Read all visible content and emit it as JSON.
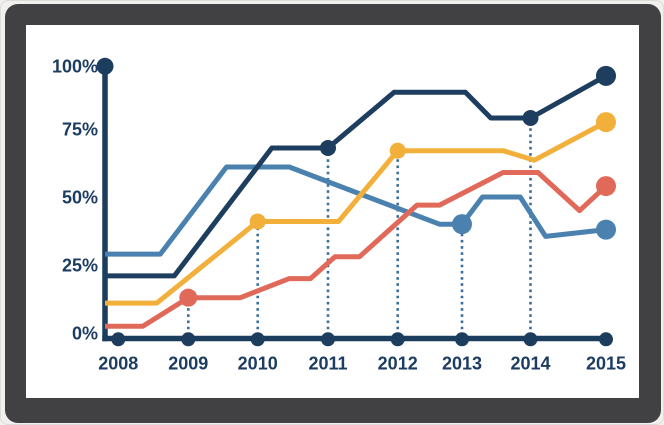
{
  "colors": {
    "bezel": "#414042",
    "screen": "#ffffff",
    "page_background": "#f1f0ee",
    "axis": "#1c3d5e",
    "label_text": "#1c3d61",
    "dotted_guide": "#3b6e9b",
    "series_dark_navy": "#1d3e5f",
    "series_steel_blue": "#4a81ae",
    "series_amber": "#f2b03b",
    "series_coral_red": "#e0695a"
  },
  "chart_data": {
    "type": "line",
    "title": "",
    "xlabel": "",
    "ylabel": "",
    "x_ticks": [
      "2008",
      "2009",
      "2010",
      "2011",
      "2012",
      "2013",
      "2014",
      "2015"
    ],
    "y_ticks": [
      {
        "label": "100%",
        "value": 100
      },
      {
        "label": "75%",
        "value": 75
      },
      {
        "label": "50%",
        "value": 50
      },
      {
        "label": "25%",
        "value": 25
      },
      {
        "label": "0%",
        "value": 0
      }
    ],
    "ylim": [
      0,
      100
    ],
    "grid": "off",
    "legend": "none",
    "axis_top_dot_value": 100,
    "series": [
      {
        "name": "steel-blue",
        "color_key": "series_steel_blue",
        "points": [
          [
            2007.81,
            31
          ],
          [
            2008.6,
            31
          ],
          [
            2009.55,
            63
          ],
          [
            2010.45,
            63
          ],
          [
            2012.65,
            42
          ],
          [
            2013,
            42
          ],
          [
            2013.3,
            52
          ],
          [
            2013.85,
            52
          ],
          [
            2014.2,
            37.5
          ],
          [
            2015,
            40
          ]
        ]
      },
      {
        "name": "dark-navy",
        "color_key": "series_dark_navy",
        "points": [
          [
            2007.81,
            23
          ],
          [
            2008.8,
            23
          ],
          [
            2010.2,
            70
          ],
          [
            2011,
            70
          ],
          [
            2011.95,
            90.5
          ],
          [
            2013.05,
            90.5
          ],
          [
            2013.42,
            81
          ],
          [
            2014,
            81
          ],
          [
            2015,
            96.5
          ]
        ]
      },
      {
        "name": "amber",
        "color_key": "series_amber",
        "points": [
          [
            2007.81,
            13
          ],
          [
            2008.55,
            13
          ],
          [
            2010,
            43
          ],
          [
            2011.15,
            43
          ],
          [
            2012,
            69
          ],
          [
            2013.6,
            69
          ],
          [
            2014.05,
            65.5
          ],
          [
            2015,
            79.5
          ]
        ]
      },
      {
        "name": "coral-red",
        "color_key": "series_coral_red",
        "points": [
          [
            2007.81,
            4.5
          ],
          [
            2008.35,
            4.5
          ],
          [
            2009,
            15
          ],
          [
            2009.75,
            15
          ],
          [
            2010.45,
            22
          ],
          [
            2010.75,
            22
          ],
          [
            2011.1,
            30
          ],
          [
            2011.45,
            30
          ],
          [
            2012.3,
            49
          ],
          [
            2012.65,
            49
          ],
          [
            2013.6,
            61
          ],
          [
            2014.1,
            61
          ],
          [
            2014.65,
            47
          ],
          [
            2015,
            56
          ]
        ]
      }
    ],
    "markers": [
      {
        "series": "coral-red",
        "x": 2009,
        "y": 15,
        "r": 9
      },
      {
        "series": "amber",
        "x": 2010,
        "y": 43,
        "r": 8
      },
      {
        "series": "dark-navy",
        "x": 2011,
        "y": 70,
        "r": 8
      },
      {
        "series": "amber",
        "x": 2012,
        "y": 69,
        "r": 8
      },
      {
        "series": "steel-blue",
        "x": 2013,
        "y": 42,
        "r": 10
      },
      {
        "series": "dark-navy",
        "x": 2014,
        "y": 81,
        "r": 8
      },
      {
        "series": "dark-navy",
        "x": 2015,
        "y": 96.5,
        "r": 10
      },
      {
        "series": "amber",
        "x": 2015,
        "y": 79.5,
        "r": 10
      },
      {
        "series": "coral-red",
        "x": 2015,
        "y": 56,
        "r": 10
      },
      {
        "series": "steel-blue",
        "x": 2015,
        "y": 40,
        "r": 10
      }
    ],
    "dotted_guides": [
      {
        "x": 2009,
        "top": 15
      },
      {
        "x": 2010,
        "top": 43
      },
      {
        "x": 2011,
        "top": 70
      },
      {
        "x": 2012,
        "top": 69
      },
      {
        "x": 2013,
        "top": 42
      },
      {
        "x": 2014,
        "top": 81
      }
    ]
  }
}
